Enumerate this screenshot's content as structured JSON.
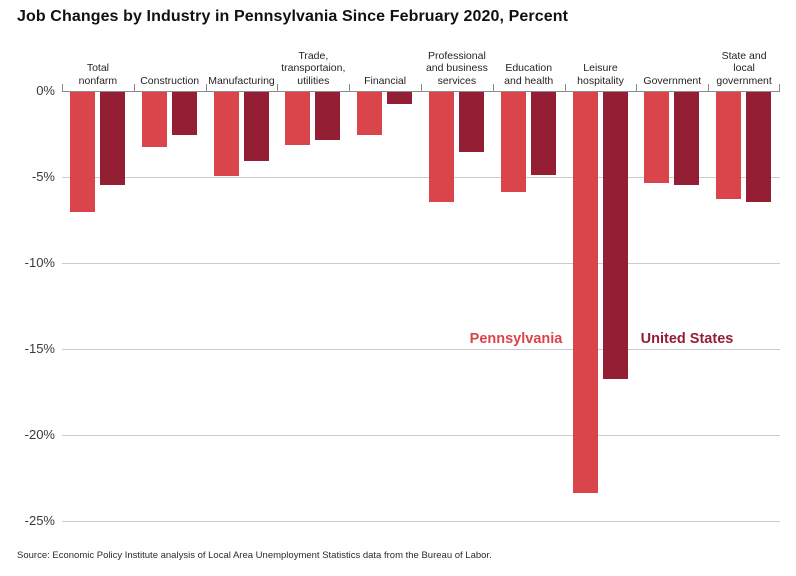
{
  "title": "Job Changes by Industry in Pennsylvania Since February 2020, Percent",
  "source": "Source: Economic Policy Institute analysis of Local Area Unemployment Statistics data from the Bureau of Labor.",
  "series_labels": {
    "pennsylvania": "Pennsylvania",
    "united_states": "United States"
  },
  "colors": {
    "pennsylvania": "#d9454b",
    "united_states": "#941f35",
    "gridline": "#cbcbcb",
    "axis": "#8c8c8c",
    "text": "#231f20"
  },
  "chart_data": {
    "type": "bar",
    "title": "Job Changes by Industry in Pennsylvania Since February 2020, Percent",
    "categories": [
      "Total nonfarm",
      "Construction",
      "Manufacturing",
      "Trade, transportaion, utilities",
      "Financial",
      "Professional and business services",
      "Education and health",
      "Leisure hospitality",
      "Government",
      "State and local government"
    ],
    "category_label_lines": [
      [
        "Total",
        "nonfarm"
      ],
      [
        "Construction"
      ],
      [
        "Manufacturing"
      ],
      [
        "Trade,",
        "transportaion,",
        "utilities"
      ],
      [
        "Financial"
      ],
      [
        "Professional",
        "and business",
        "services"
      ],
      [
        "Education",
        "and health"
      ],
      [
        "Leisure",
        "hospitality"
      ],
      [
        "Government"
      ],
      [
        "State and",
        "local",
        "government"
      ]
    ],
    "series": [
      {
        "name": "Pennsylvania",
        "color": "#d9454b",
        "values": [
          -7.0,
          -3.2,
          -4.9,
          -3.1,
          -2.5,
          -6.4,
          -5.8,
          -23.3,
          -5.3,
          -6.2
        ]
      },
      {
        "name": "United States",
        "color": "#941f35",
        "values": [
          -5.4,
          -2.5,
          -4.0,
          -2.8,
          -0.7,
          -3.5,
          -4.8,
          -16.7,
          -5.4,
          -6.4
        ]
      }
    ],
    "xlabel": "",
    "ylabel": "",
    "ylim": [
      -25,
      0
    ],
    "yticks": [
      "0%",
      "-5%",
      "-10%",
      "-15%",
      "-20%",
      "-25%"
    ],
    "ytick_values": [
      0,
      -5,
      -10,
      -15,
      -20,
      -25
    ],
    "grid": true,
    "legend_position": "inside-plot"
  }
}
